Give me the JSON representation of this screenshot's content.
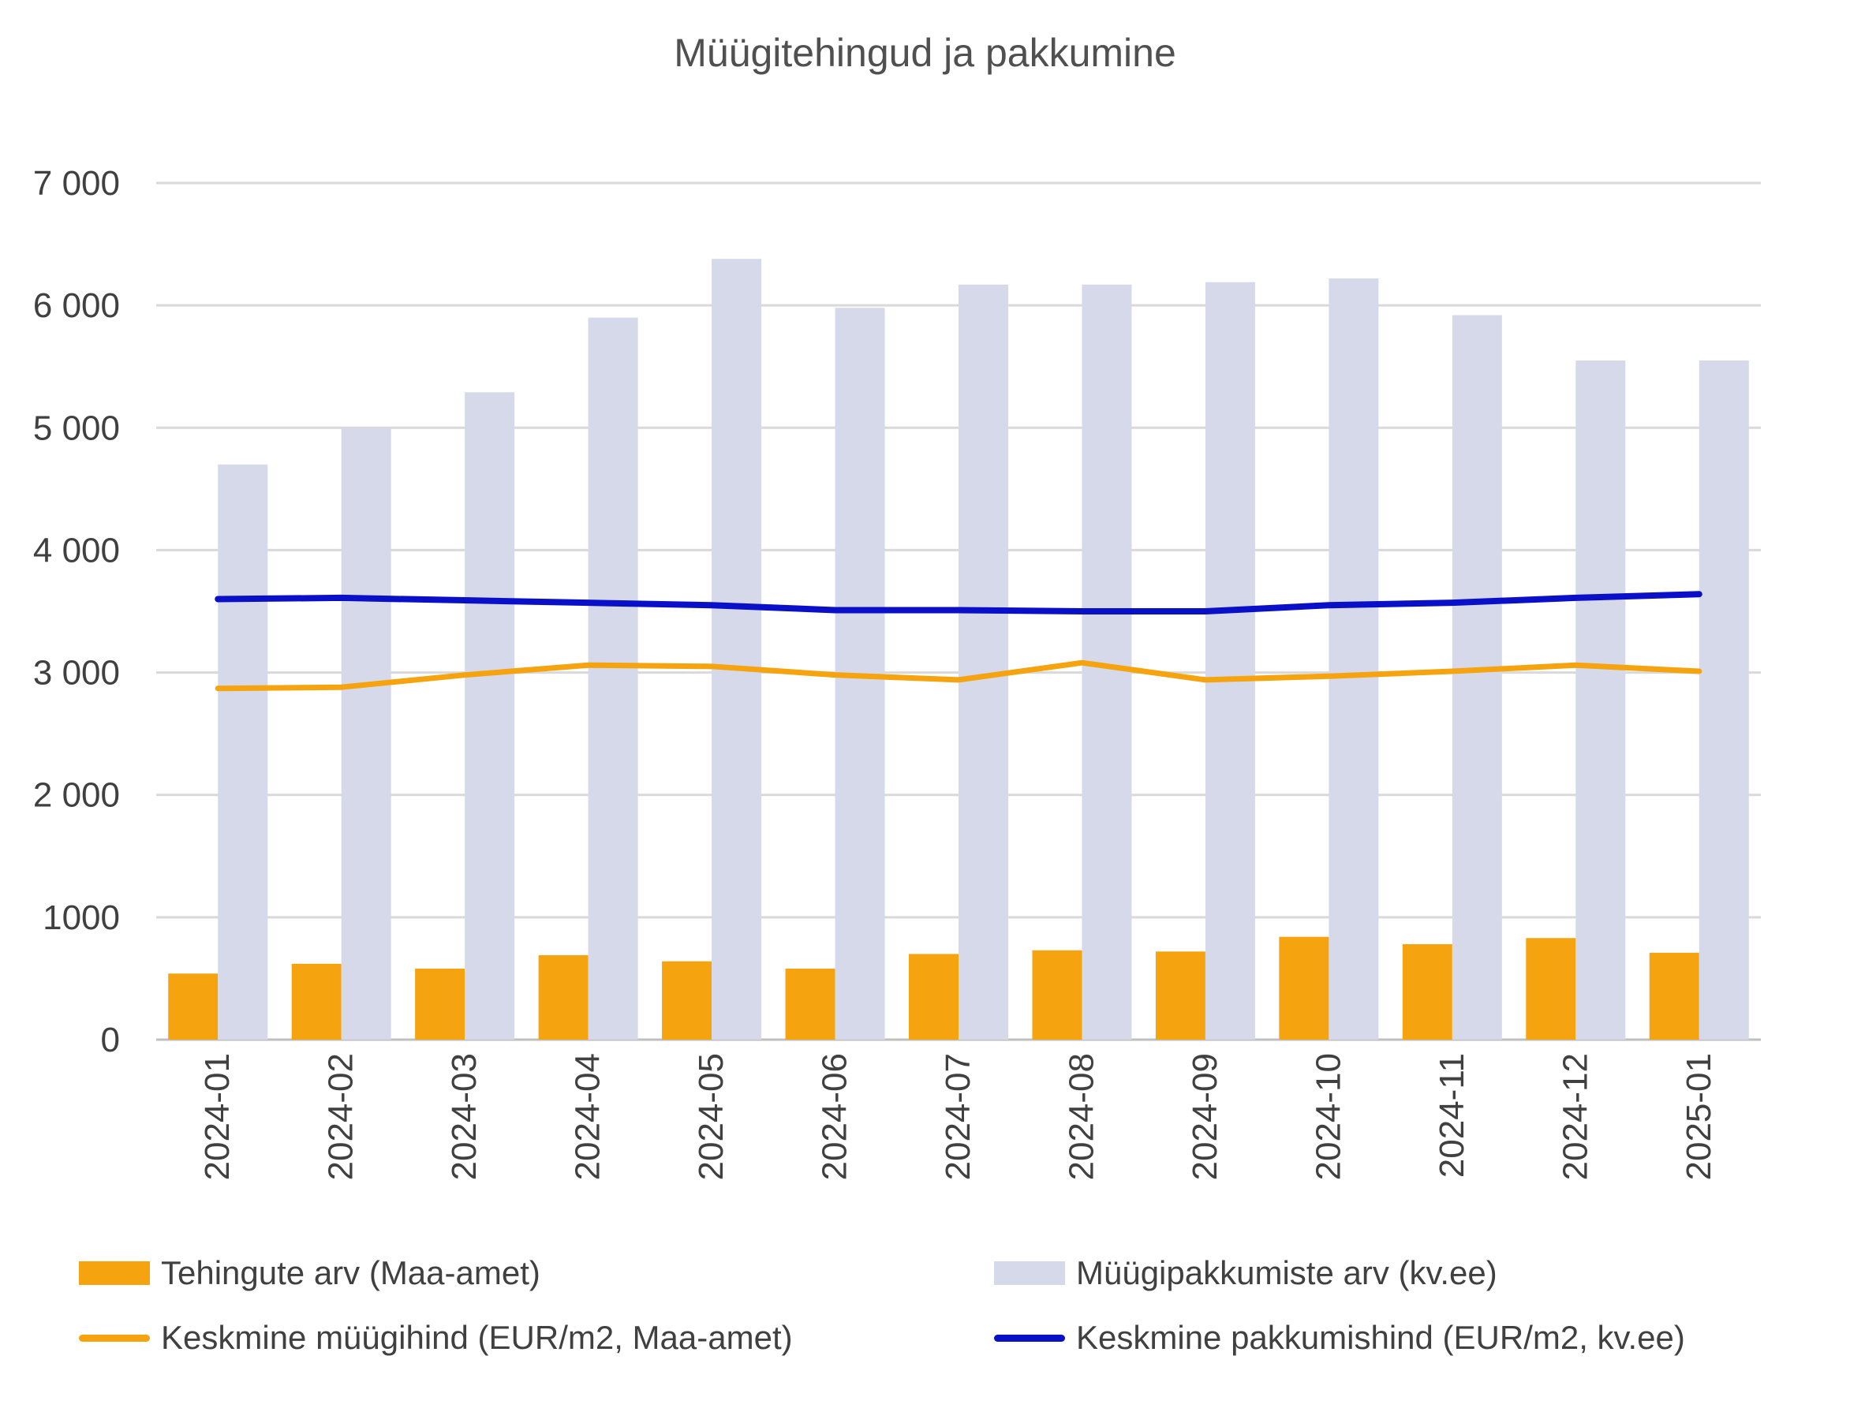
{
  "chart_data": {
    "type": "bar",
    "title": "Müügitehingud ja pakkumine",
    "xlabel": "",
    "ylabel": "",
    "ylim": [
      0,
      7000
    ],
    "y_ticks": [
      0,
      1000,
      2000,
      3000,
      4000,
      5000,
      6000,
      7000
    ],
    "y_tick_labels": [
      "0",
      "1000",
      "2 000",
      "3 000",
      "4 000",
      "5 000",
      "6 000",
      "7 000"
    ],
    "grid": true,
    "legend_position": "bottom",
    "categories": [
      "2024-01",
      "2024-02",
      "2024-03",
      "2024-04",
      "2024-05",
      "2024-06",
      "2024-07",
      "2024-08",
      "2024-09",
      "2024-10",
      "2024-11",
      "2024-12",
      "2025-01"
    ],
    "series": [
      {
        "name": "Tehingute arv (Maa-amet)",
        "kind": "bar",
        "color": "#F5A30F",
        "values": [
          540,
          620,
          580,
          690,
          640,
          580,
          700,
          730,
          720,
          840,
          780,
          830,
          710
        ]
      },
      {
        "name": "Müügipakkumiste arv (kv.ee)",
        "kind": "bar",
        "color": "#D5D9EA",
        "values": [
          4700,
          5000,
          5290,
          5900,
          6380,
          5980,
          6170,
          6170,
          6190,
          6220,
          5920,
          5550,
          5550
        ]
      },
      {
        "name": "Keskmine müügihind (EUR/m2, Maa-amet)",
        "kind": "line",
        "color": "#F5A30F",
        "values": [
          2870,
          2880,
          2980,
          3060,
          3050,
          2980,
          2940,
          3080,
          2940,
          2970,
          3010,
          3060,
          3010
        ]
      },
      {
        "name": "Keskmine pakkumishind (EUR/m2, kv.ee)",
        "kind": "line",
        "color": "#0A10C8",
        "values": [
          3600,
          3610,
          3590,
          3570,
          3550,
          3510,
          3510,
          3500,
          3500,
          3550,
          3570,
          3610,
          3640
        ]
      }
    ]
  }
}
